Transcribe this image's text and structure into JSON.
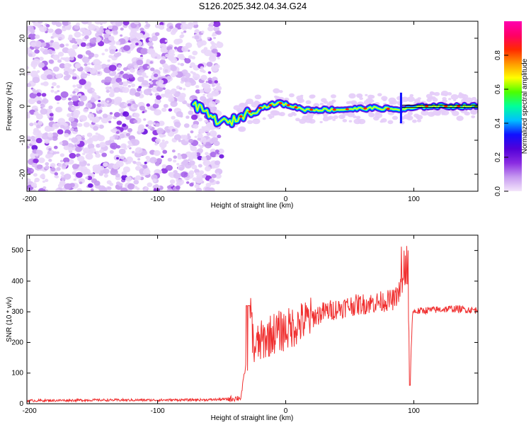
{
  "title": "S126.2025.342.04.34.G24",
  "chart_data": [
    {
      "type": "heatmap",
      "xlabel": "Height of straight line (km)",
      "ylabel": "Frequency (Hz)",
      "xlim": [
        -202,
        150
      ],
      "ylim": [
        -25,
        25
      ],
      "xticks": [
        -200,
        -100,
        0,
        100
      ],
      "yticks": [
        -20,
        -10,
        0,
        10,
        20
      ],
      "colorbar": {
        "label": "Normalized spectral amplitude",
        "range": [
          0.0,
          1.0
        ],
        "ticks": [
          0.0,
          0.2,
          0.4,
          0.6,
          0.8
        ],
        "tick_labels": [
          "0.0",
          "0.2",
          "0.4",
          "0.6",
          "0.8"
        ],
        "colors": [
          "#f4e6fb",
          "#c79af0",
          "#8a2be2",
          "#5200d8",
          "#1010ff",
          "#00c0ff",
          "#00ff9a",
          "#4cff00",
          "#ffff00",
          "#ff9900",
          "#ff2a00",
          "#ff0066",
          "#ff00b0"
        ]
      },
      "ridge_frequency_hz": [
        {
          "x": -70,
          "f": 0
        },
        {
          "x": -62,
          "f": -2
        },
        {
          "x": -55,
          "f": -4
        },
        {
          "x": -45,
          "f": -5
        },
        {
          "x": -35,
          "f": -3
        },
        {
          "x": -25,
          "f": -1
        },
        {
          "x": -15,
          "f": 0
        },
        {
          "x": -5,
          "f": 1
        },
        {
          "x": 5,
          "f": 0
        },
        {
          "x": 15,
          "f": -1
        },
        {
          "x": 40,
          "f": -1
        },
        {
          "x": 70,
          "f": -0.5
        },
        {
          "x": 90,
          "f": -1
        },
        {
          "x": 110,
          "f": 0
        },
        {
          "x": 150,
          "f": 0
        }
      ]
    },
    {
      "type": "line",
      "xlabel": "Height of straight line (km)",
      "ylabel": "SNR (10 * v/v)",
      "xlim": [
        -202,
        150
      ],
      "ylim": [
        0,
        550
      ],
      "xticks": [
        -200,
        -100,
        0,
        100
      ],
      "yticks": [
        0,
        100,
        200,
        300,
        400,
        500
      ],
      "color": "#f03030",
      "series": [
        {
          "name": "SNR",
          "x": [
            -202,
            -150,
            -100,
            -60,
            -45,
            -35,
            -30,
            -28,
            -25,
            -20,
            -10,
            0,
            10,
            20,
            30,
            50,
            70,
            85,
            90,
            95,
            97,
            99,
            110,
            130,
            150
          ],
          "values": [
            10,
            12,
            12,
            13,
            15,
            20,
            160,
            320,
            180,
            200,
            230,
            240,
            260,
            280,
            300,
            320,
            330,
            340,
            380,
            420,
            60,
            300,
            305,
            310,
            305
          ]
        }
      ]
    }
  ]
}
